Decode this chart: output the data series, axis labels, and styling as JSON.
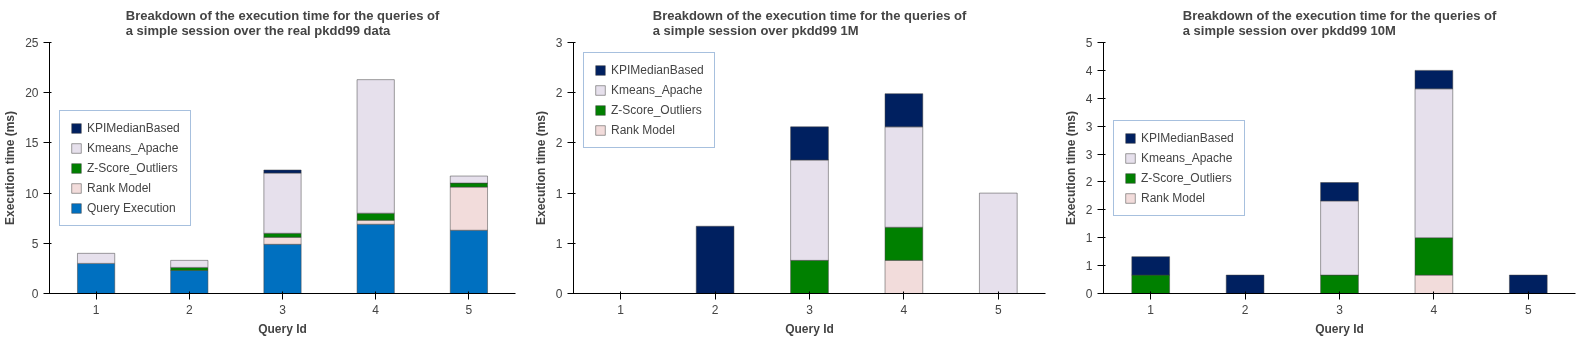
{
  "chart_data": [
    {
      "type": "bar",
      "stacked": true,
      "title": "Breakdown of the execution time for the queries of a simple session over the real pkdd99 data",
      "xlabel": "Query Id",
      "ylabel": "Execution time (ms)",
      "categories": [
        "1",
        "2",
        "3",
        "4",
        "5"
      ],
      "ylim": [
        0,
        25
      ],
      "yticks": [
        0,
        5,
        10,
        15,
        20,
        25
      ],
      "grid": false,
      "legend": "left",
      "series": [
        {
          "name": "Query Execution",
          "color": "#0070c0",
          "values": [
            3.0,
            2.3,
            4.9,
            6.9,
            6.3
          ]
        },
        {
          "name": "Rank Model",
          "color": "#f2dcdb",
          "values": [
            null,
            null,
            0.7,
            0.4,
            4.3
          ]
        },
        {
          "name": "Z-Score_Outliers",
          "color": "#008000",
          "values": [
            null,
            0.3,
            0.4,
            0.7,
            0.4
          ]
        },
        {
          "name": "Kmeans_Apache",
          "color": "#e6e0ec",
          "values": [
            1.0,
            0.7,
            6.0,
            13.3,
            0.7
          ]
        },
        {
          "name": "KPIMedianBased",
          "color": "#002060",
          "values": [
            null,
            null,
            0.3,
            null,
            null
          ]
        }
      ]
    },
    {
      "type": "bar",
      "stacked": true,
      "title": "Breakdown of the execution time for the queries of a simple session over pkdd99 1M",
      "xlabel": "Query Id",
      "ylabel": "Execution time (ms)",
      "categories": [
        "1",
        "2",
        "3",
        "4",
        "5"
      ],
      "ylim": [
        0,
        2.5
      ],
      "yticks": [
        0,
        {
          "value": 0.5,
          "label": "1"
        },
        1,
        {
          "value": 1.5,
          "label": "2"
        },
        2,
        {
          "value": 2.5,
          "label": "3"
        }
      ],
      "grid": false,
      "legend": "top left",
      "series": [
        {
          "name": "Rank Model",
          "color": "#f2dcdb",
          "values": [
            null,
            null,
            null,
            0.33,
            null
          ]
        },
        {
          "name": "Z-Score_Outliers",
          "color": "#008000",
          "values": [
            null,
            null,
            0.33,
            0.33,
            null
          ]
        },
        {
          "name": "Kmeans_Apache",
          "color": "#e6e0ec",
          "values": [
            null,
            null,
            1.0,
            1.0,
            1.0
          ]
        },
        {
          "name": "KPIMedianBased",
          "color": "#002060",
          "values": [
            null,
            0.67,
            0.33,
            0.33,
            null
          ]
        }
      ]
    },
    {
      "type": "bar",
      "stacked": true,
      "title": "Breakdown of the execution time for the queries of a simple session over pkdd99 10M",
      "xlabel": "Query Id",
      "ylabel": "Execution time (ms)",
      "categories": [
        "1",
        "2",
        "3",
        "4",
        "5"
      ],
      "ylim": [
        0,
        4.5
      ],
      "yticks": [
        0,
        {
          "value": 0.5,
          "label": "1"
        },
        1,
        {
          "value": 1.5,
          "label": "2"
        },
        2,
        {
          "value": 2.5,
          "label": "3"
        },
        3,
        {
          "value": 3.5,
          "label": "4"
        },
        4,
        {
          "value": 4.5,
          "label": "5"
        }
      ],
      "grid": false,
      "legend": "left",
      "series": [
        {
          "name": "Rank Model",
          "color": "#f2dcdb",
          "values": [
            null,
            null,
            null,
            0.33,
            null
          ]
        },
        {
          "name": "Z-Score_Outliers",
          "color": "#008000",
          "values": [
            0.33,
            null,
            0.33,
            0.67,
            null
          ]
        },
        {
          "name": "Kmeans_Apache",
          "color": "#e6e0ec",
          "values": [
            null,
            null,
            1.33,
            2.67,
            null
          ]
        },
        {
          "name": "KPIMedianBased",
          "color": "#002060",
          "values": [
            0.33,
            0.33,
            0.33,
            0.33,
            0.33
          ]
        }
      ]
    }
  ]
}
